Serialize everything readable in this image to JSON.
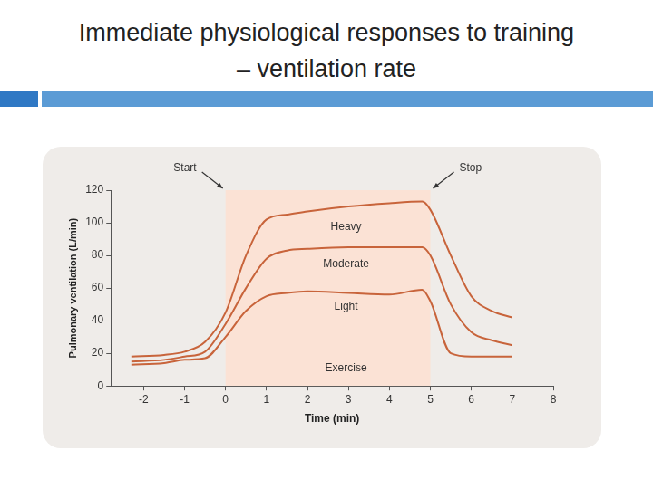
{
  "chart_data": {
    "type": "line",
    "title": "Immediate physiological responses to training\n– ventilation rate",
    "x_label": "Time (min)",
    "y_label": "Pulmonary ventilation (L/min)",
    "x": [
      -2.3,
      -1.5,
      -1,
      -0.5,
      0,
      0.5,
      1,
      1.5,
      2,
      3,
      4,
      4.8,
      5,
      5.5,
      6,
      6.5,
      7
    ],
    "series": [
      {
        "name": "Heavy",
        "color": "#c8643b",
        "values": [
          18,
          19,
          21,
          27,
          45,
          80,
          102,
          105,
          107,
          110,
          112,
          113,
          108,
          80,
          55,
          46,
          42
        ]
      },
      {
        "name": "Moderate",
        "color": "#c8643b",
        "values": [
          15,
          16,
          18,
          21,
          38,
          60,
          78,
          83,
          84,
          85,
          85,
          85,
          80,
          50,
          33,
          28,
          25
        ]
      },
      {
        "name": "Light",
        "color": "#c8643b",
        "values": [
          13,
          14,
          16,
          17,
          30,
          46,
          55,
          57,
          58,
          57,
          56,
          59,
          52,
          20,
          18,
          18,
          18
        ]
      }
    ],
    "xlim": [
      -2.8,
      8
    ],
    "xticks": [
      -2,
      -1,
      0,
      1,
      2,
      3,
      4,
      5,
      6,
      7,
      8
    ],
    "ylim": [
      0,
      120
    ],
    "yticks": [
      0,
      20,
      40,
      60,
      80,
      100,
      120
    ],
    "grid": false,
    "annotations": [
      {
        "text": "Start",
        "x": 0
      },
      {
        "text": "Stop",
        "x": 5
      }
    ],
    "shaded": {
      "from": 0,
      "to": 5,
      "label": "Exercise"
    }
  }
}
